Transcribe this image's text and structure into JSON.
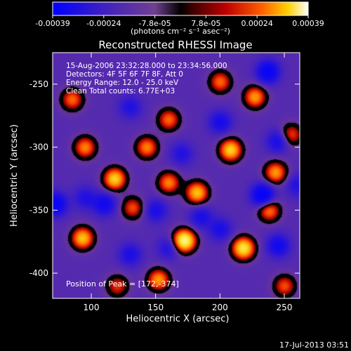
{
  "chart_data": {
    "type": "heatmap",
    "title": "Reconstructed RHESSI Image",
    "xlabel": "Heliocentric X (arcsec)",
    "ylabel": "Heliocentric Y (arcsec)",
    "xlim": [
      70,
      262
    ],
    "ylim": [
      -420,
      -225
    ],
    "x_ticks": [
      100,
      150,
      200,
      250
    ],
    "y_ticks": [
      -400,
      -350,
      -300,
      -250
    ],
    "colorbar": {
      "ticks": [
        "-0.00039",
        "-0.00024",
        "-7.8e-05",
        "7.8e-05",
        "0.00024",
        "0.00039"
      ],
      "range": [
        -0.00039,
        0.00039
      ],
      "units_label": "(photons cm⁻² s⁻¹ asec⁻²)"
    },
    "annotations": [
      "15-Aug-2006 23:32:28.000 to 23:34:56.000",
      "Detectors: 4F 5F 6F 7F 8F, Att 0",
      "Energy Range: 12.0 - 25.0 keV",
      "Clean    Total counts: 6.77E+03"
    ],
    "peak_label": "Position of Peak = [172,-374]",
    "peak": [
      172,
      -374
    ],
    "blobs": [
      {
        "x": 172,
        "y": -374,
        "v": 1.0
      },
      {
        "x": 218,
        "y": -380,
        "v": 0.85
      },
      {
        "x": 93,
        "y": -372,
        "v": 0.7
      },
      {
        "x": 152,
        "y": -405,
        "v": 0.6
      },
      {
        "x": 182,
        "y": -336,
        "v": 0.7
      },
      {
        "x": 160,
        "y": -328,
        "v": 0.55
      },
      {
        "x": 118,
        "y": -325,
        "v": 0.75
      },
      {
        "x": 208,
        "y": -302,
        "v": 0.75
      },
      {
        "x": 227,
        "y": -260,
        "v": 0.6
      },
      {
        "x": 243,
        "y": -320,
        "v": 0.6
      },
      {
        "x": 85,
        "y": -262,
        "v": 0.5
      },
      {
        "x": 95,
        "y": -300,
        "v": 0.55
      },
      {
        "x": 143,
        "y": -300,
        "v": 0.55
      },
      {
        "x": 160,
        "y": -278,
        "v": 0.5
      },
      {
        "x": 200,
        "y": -248,
        "v": 0.5
      },
      {
        "x": 255,
        "y": -290,
        "v": 0.45
      },
      {
        "x": 250,
        "y": -410,
        "v": 0.45
      },
      {
        "x": 120,
        "y": -410,
        "v": 0.4
      },
      {
        "x": 132,
        "y": -348,
        "v": 0.45
      },
      {
        "x": 238,
        "y": -350,
        "v": 0.55
      },
      {
        "x": 72,
        "y": -345,
        "v": -0.6
      },
      {
        "x": 233,
        "y": -338,
        "v": -0.7
      },
      {
        "x": 237,
        "y": -240,
        "v": -0.6
      },
      {
        "x": 245,
        "y": -378,
        "v": -0.45
      },
      {
        "x": 200,
        "y": -280,
        "v": -0.4
      },
      {
        "x": 110,
        "y": -345,
        "v": -0.45
      },
      {
        "x": 185,
        "y": -355,
        "v": -0.35
      },
      {
        "x": 200,
        "y": -365,
        "v": -0.35
      },
      {
        "x": 130,
        "y": -385,
        "v": -0.35
      },
      {
        "x": 170,
        "y": -305,
        "v": -0.3
      },
      {
        "x": 130,
        "y": -268,
        "v": -0.3
      },
      {
        "x": 95,
        "y": -340,
        "v": -0.3
      },
      {
        "x": 150,
        "y": -350,
        "v": -0.35
      },
      {
        "x": 260,
        "y": -330,
        "v": -0.3
      },
      {
        "x": 245,
        "y": -295,
        "v": -0.4
      },
      {
        "x": 160,
        "y": -380,
        "v": -0.3
      }
    ]
  },
  "footer": {
    "timestamp": "17-Jul-2013 03:51"
  }
}
